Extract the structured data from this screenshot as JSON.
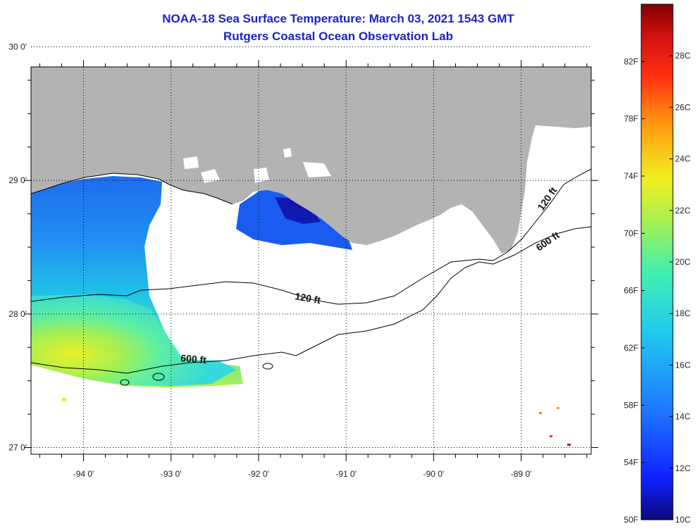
{
  "title": {
    "line1": "NOAA-18 Sea Surface Temperature:  March 03, 2021 1543 GMT",
    "line2": "Rutgers Coastal Ocean Observation Lab"
  },
  "map": {
    "lon_range": [
      -94.6,
      -88.2
    ],
    "lat_range": [
      26.95,
      29.85
    ],
    "lon_ticks": [
      {
        "value": -94,
        "label": "-94 0'"
      },
      {
        "value": -93,
        "label": "-93 0'"
      },
      {
        "value": -92,
        "label": "-92 0'"
      },
      {
        "value": -91,
        "label": "-91 0'"
      },
      {
        "value": -90,
        "label": "-90 0'"
      },
      {
        "value": -89,
        "label": "-89 0'"
      }
    ],
    "lat_ticks": [
      {
        "value": 30,
        "label": "30 0'"
      },
      {
        "value": 29,
        "label": "29 0'"
      },
      {
        "value": 28,
        "label": "28 0'"
      },
      {
        "value": 27,
        "label": "27 0'"
      }
    ],
    "contour_labels": [
      "120 ft",
      "600 ft",
      "120 ft",
      "600 ft"
    ],
    "colors": {
      "land": "#b3b3b3",
      "no_data": "#ffffff",
      "grid": "#000000"
    }
  },
  "colorbar": {
    "fahrenheit_labels": [
      "82F",
      "78F",
      "74F",
      "70F",
      "66F",
      "62F",
      "58F",
      "54F",
      "50F"
    ],
    "celsius_labels": [
      "28C",
      "26C",
      "24C",
      "22C",
      "20C",
      "18C",
      "16C",
      "14C",
      "12C",
      "10C"
    ],
    "colors": [
      "#0a0a8c",
      "#1030ff",
      "#1e78ff",
      "#20c8f0",
      "#40f0c0",
      "#a0f060",
      "#f0f020",
      "#ffa010",
      "#ff3010",
      "#d01010",
      "#800000"
    ]
  }
}
